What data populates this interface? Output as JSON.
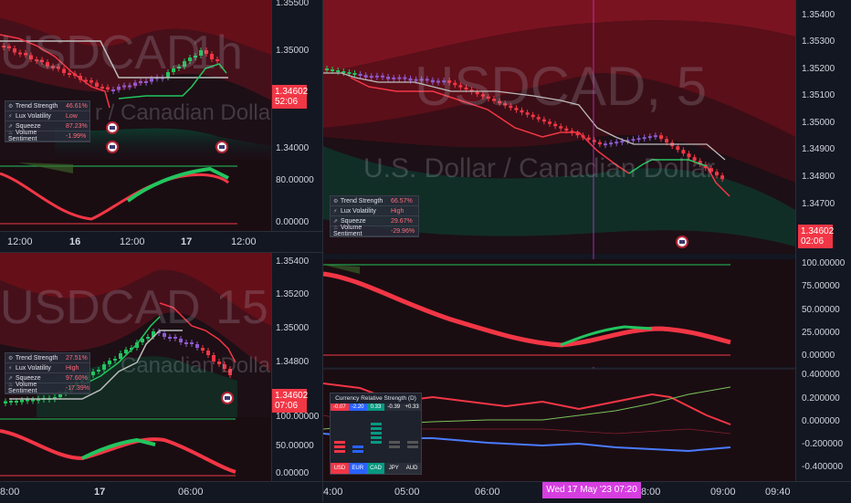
{
  "panes": {
    "top_left": {
      "symbol": "USDCAD",
      "interval": "1h",
      "subtitle": "r / Canadian Dollar",
      "price_labels": [
        "1.35500",
        "1.35000",
        "1.34000"
      ],
      "price_tag": {
        "price": "1.34602",
        "countdown": "52:06"
      },
      "osc_labels": [
        "80.00000",
        "0.00000"
      ],
      "time_labels": [
        "12:00",
        "16",
        "12:00",
        "17",
        "12:00"
      ],
      "info": {
        "rows": [
          {
            "icon": "⚙",
            "label": "Trend Strength",
            "value": "46.61%"
          },
          {
            "icon": "⚡",
            "label": "Lux Volatility",
            "value": "Low"
          },
          {
            "icon": "⇗",
            "label": "Squeeze",
            "value": "87.23%"
          },
          {
            "icon": "♨",
            "label": "Volume Sentiment",
            "value": "-1.99%"
          }
        ]
      }
    },
    "bottom_left": {
      "symbol": "USDCAD",
      "interval": "15",
      "subtitle": "Canadian Dollar",
      "price_labels": [
        "1.35400",
        "1.35200",
        "1.35000",
        "1.34800"
      ],
      "price_tag": {
        "price": "1.34602",
        "countdown": "07:06"
      },
      "osc_labels": [
        "100.00000",
        "50.00000",
        "0.00000"
      ],
      "time_labels": [
        "8:00",
        "17",
        "06:00"
      ],
      "info": {
        "rows": [
          {
            "icon": "⚙",
            "label": "Trend Strength",
            "value": "27.51%"
          },
          {
            "icon": "⚡",
            "label": "Lux Volatility",
            "value": "High"
          },
          {
            "icon": "⇗",
            "label": "Squeeze",
            "value": "97.60%"
          },
          {
            "icon": "♨",
            "label": "Volume Sentiment",
            "value": "-17.39%"
          }
        ]
      }
    },
    "right": {
      "symbol": "USDCAD, 5",
      "subtitle": "U.S. Dollar / Canadian Dollar",
      "price_labels": [
        "1.35400",
        "1.35300",
        "1.35200",
        "1.35100",
        "1.35000",
        "1.34900",
        "1.34800",
        "1.34700"
      ],
      "price_tag": {
        "price": "1.34602",
        "countdown": "02:06"
      },
      "osc_labels": [
        "100.00000",
        "75.00000",
        "50.00000",
        "25.00000",
        "0.00000"
      ],
      "crs_labels": [
        "0.400000",
        "0.200000",
        "0.000000",
        "-0.200000",
        "-0.400000"
      ],
      "time_labels": [
        "4:00",
        "05:00",
        "06:00",
        "8:00",
        "09:00",
        "09:40"
      ],
      "crosshair_time": "Wed 17 May '23   07:20",
      "info": {
        "rows": [
          {
            "icon": "⚙",
            "label": "Trend Strength",
            "value": "66.57%"
          },
          {
            "icon": "⚡",
            "label": "Lux Volatility",
            "value": "High"
          },
          {
            "icon": "⇗",
            "label": "Squeeze",
            "value": "29.67%"
          },
          {
            "icon": "♨",
            "label": "Volume Sentiment",
            "value": "-29.96%"
          }
        ]
      },
      "crs_table": {
        "title": "Currency Relative Strength (D)",
        "values": [
          "-0.07",
          "-2.20",
          "0.33",
          "-0.39",
          "+0.33"
        ],
        "currencies": [
          "USD",
          "EUR",
          "CAD",
          "JPY",
          "AUD"
        ],
        "colors": [
          "#f23645",
          "#2962ff",
          "#089981",
          "#2a2e39",
          "#2a2e39"
        ]
      }
    }
  },
  "colors": {
    "bull": "#22c55e",
    "bear": "#f23645",
    "neutral": "#8e5bd0",
    "background": "#131722"
  }
}
